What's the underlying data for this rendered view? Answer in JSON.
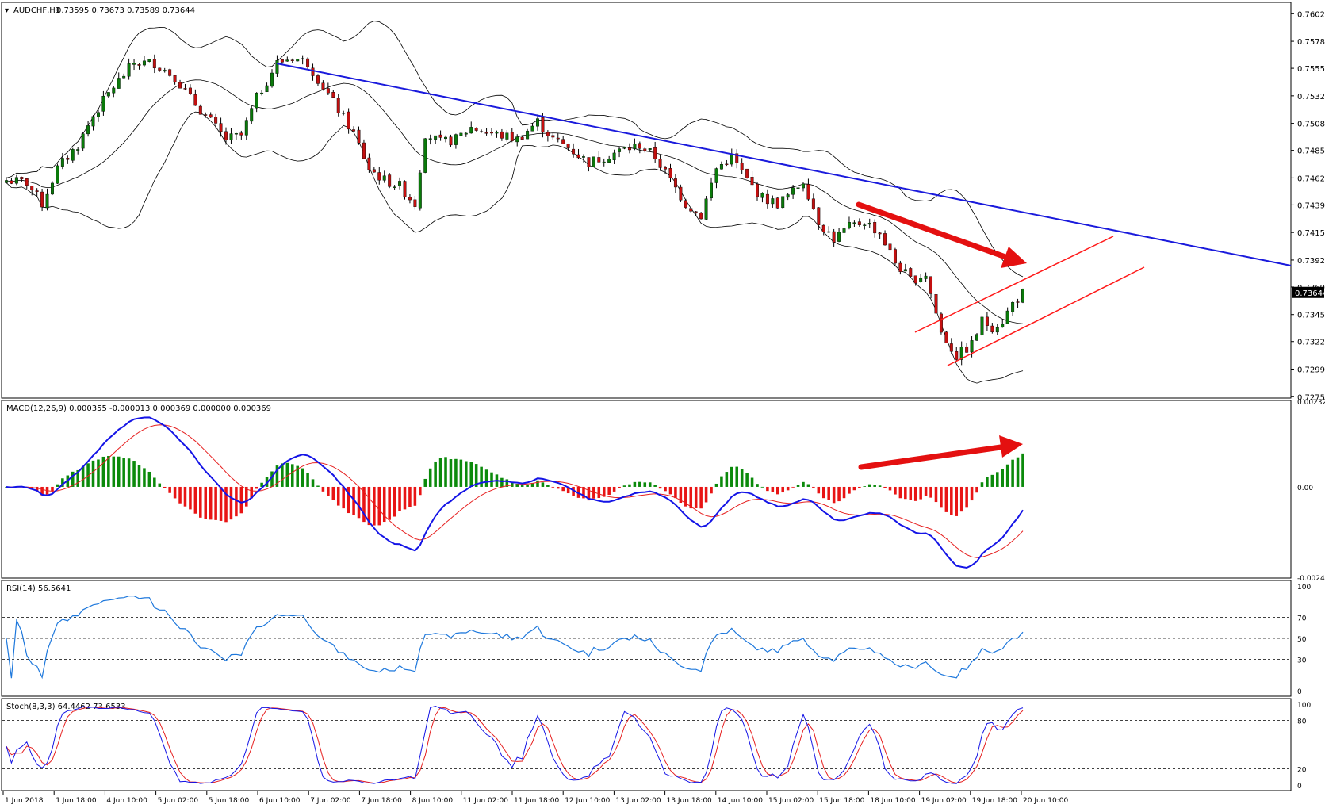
{
  "chart_data": [
    {
      "type": "candlestick",
      "title": "AUDCHF,H1",
      "header_values": "0.73595 0.73673 0.73589 0.73644",
      "ylim": [
        0.7275,
        0.7611
      ],
      "y_ticks": [
        "0.76020",
        "0.75785",
        "0.75555",
        "0.75320",
        "0.75085",
        "0.74855",
        "0.74620",
        "0.74390",
        "0.74155",
        "0.73920",
        "0.73690",
        "0.73455",
        "0.73225",
        "0.72990",
        "0.72755"
      ],
      "last_price": "0.73644",
      "overlays": [
        "Bollinger Bands (20)",
        "Descending trendline",
        "Rising channel"
      ],
      "arrow_annotation": "down",
      "candles_count": 200
    },
    {
      "type": "histogram+line",
      "title": "MACD(12,26,9) 0.000355 -0.000013 0.000369 0.000000 0.000369",
      "y_ticks": [
        "0.002328",
        "0.00",
        "-0.002459"
      ],
      "ylim": [
        -0.002459,
        0.002328
      ],
      "series": [
        {
          "name": "MACD",
          "color": "#1414e6"
        },
        {
          "name": "Signal",
          "color": "#e62020"
        }
      ],
      "histogram_colors": {
        "positive": "#0b8a0b",
        "negative": "#e81414"
      },
      "arrow_annotation": "up"
    },
    {
      "type": "line",
      "title": "RSI(14) 56.5641",
      "y_ticks": [
        "100",
        "70",
        "50",
        "30",
        "0"
      ],
      "levels": [
        70,
        50,
        30
      ],
      "ylim": [
        0,
        100
      ],
      "series": [
        {
          "name": "RSI",
          "color": "#1e78dc"
        }
      ]
    },
    {
      "type": "line",
      "title": "Stoch(8,3,3) 64.4462 73.6533",
      "y_ticks": [
        "100",
        "80",
        "20",
        "0"
      ],
      "levels": [
        80,
        20
      ],
      "ylim": [
        0,
        100
      ],
      "series": [
        {
          "name": "%K",
          "color": "#1414e6"
        },
        {
          "name": "%D",
          "color": "#e62020"
        }
      ]
    }
  ],
  "x_axis": {
    "labels": [
      "1 Jun 2018",
      "1 Jun 18:00",
      "4 Jun 10:00",
      "5 Jun 02:00",
      "5 Jun 18:00",
      "6 Jun 10:00",
      "7 Jun 02:00",
      "7 Jun 18:00",
      "8 Jun 10:00",
      "11 Jun 02:00",
      "11 Jun 18:00",
      "12 Jun 10:00",
      "13 Jun 02:00",
      "13 Jun 18:00",
      "14 Jun 10:00",
      "15 Jun 02:00",
      "15 Jun 18:00",
      "18 Jun 10:00",
      "19 Jun 02:00",
      "19 Jun 18:00",
      "20 Jun 10:00"
    ]
  },
  "colors": {
    "bull": "#0a7a0a",
    "bear": "#c41010",
    "trendline": "#1a1adc",
    "channel": "#ff1a1a",
    "arrow": "#e41010",
    "grid": "#000000"
  }
}
